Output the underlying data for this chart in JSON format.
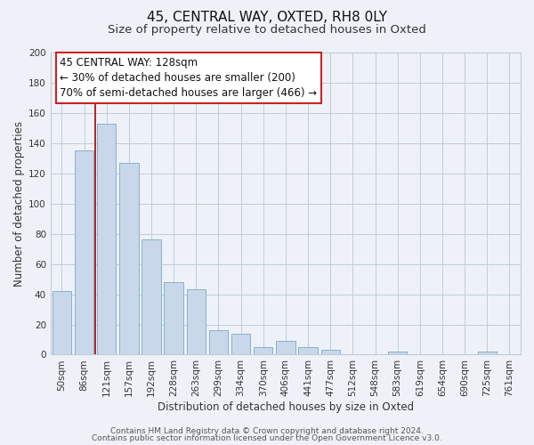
{
  "title": "45, CENTRAL WAY, OXTED, RH8 0LY",
  "subtitle": "Size of property relative to detached houses in Oxted",
  "xlabel": "Distribution of detached houses by size in Oxted",
  "ylabel": "Number of detached properties",
  "bar_labels": [
    "50sqm",
    "86sqm",
    "121sqm",
    "157sqm",
    "192sqm",
    "228sqm",
    "263sqm",
    "299sqm",
    "334sqm",
    "370sqm",
    "406sqm",
    "441sqm",
    "477sqm",
    "512sqm",
    "548sqm",
    "583sqm",
    "619sqm",
    "654sqm",
    "690sqm",
    "725sqm",
    "761sqm"
  ],
  "bar_values": [
    42,
    135,
    153,
    127,
    76,
    48,
    43,
    16,
    14,
    5,
    9,
    5,
    3,
    0,
    0,
    2,
    0,
    0,
    0,
    2,
    0
  ],
  "bar_color": "#c8d8ea",
  "bar_edgecolor": "#88b0cc",
  "vline_x_idx": 2,
  "vline_color": "#aa0000",
  "ylim": [
    0,
    200
  ],
  "yticks": [
    0,
    20,
    40,
    60,
    80,
    100,
    120,
    140,
    160,
    180,
    200
  ],
  "annotation_line1": "45 CENTRAL WAY: 128sqm",
  "annotation_line2": "← 30% of detached houses are smaller (200)",
  "annotation_line3": "70% of semi-detached houses are larger (466) →",
  "footer_line1": "Contains HM Land Registry data © Crown copyright and database right 2024.",
  "footer_line2": "Contains public sector information licensed under the Open Government Licence v3.0.",
  "bg_color": "#eef2f8",
  "plot_bg_color": "#eef2f8",
  "grid_color": "#c0ccd8",
  "title_fontsize": 11,
  "subtitle_fontsize": 9.5,
  "axis_label_fontsize": 8.5,
  "tick_fontsize": 7.5,
  "annotation_fontsize": 8.5,
  "footer_fontsize": 6.5
}
